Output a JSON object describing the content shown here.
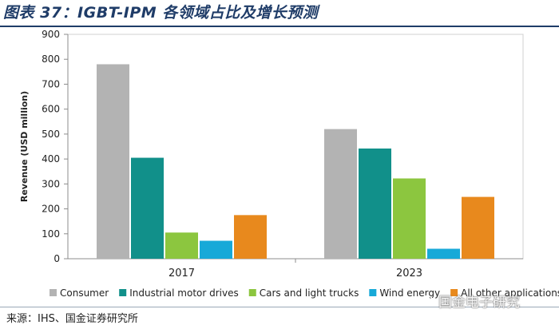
{
  "figure": {
    "title": "图表 37：IGBT-IPM 各领域占比及增长预测",
    "source": "来源：IHS、国金证券研究所",
    "watermark": "国金电子研究"
  },
  "colors": {
    "title": "#1f3c68",
    "plot_bg": "#ffffff",
    "axis": "#8c8c8c",
    "series": [
      "#b3b3b3",
      "#11908a",
      "#8cc63f",
      "#17a9d8",
      "#e8891d"
    ]
  },
  "chart_data": {
    "type": "bar",
    "title": "",
    "xlabel": "",
    "ylabel": "Revenue (USD million)",
    "ylim": [
      0,
      900
    ],
    "yticks": [
      0,
      100,
      200,
      300,
      400,
      500,
      600,
      700,
      800,
      900
    ],
    "categories": [
      "2017",
      "2023"
    ],
    "legend_position": "bottom",
    "series": [
      {
        "name": "Consumer",
        "values": [
          780,
          520
        ]
      },
      {
        "name": "Industrial motor drives",
        "values": [
          405,
          442
        ]
      },
      {
        "name": "Cars and light trucks",
        "values": [
          105,
          322
        ]
      },
      {
        "name": "Wind energy",
        "values": [
          72,
          40
        ]
      },
      {
        "name": "All other applications",
        "values": [
          175,
          248
        ]
      }
    ]
  }
}
